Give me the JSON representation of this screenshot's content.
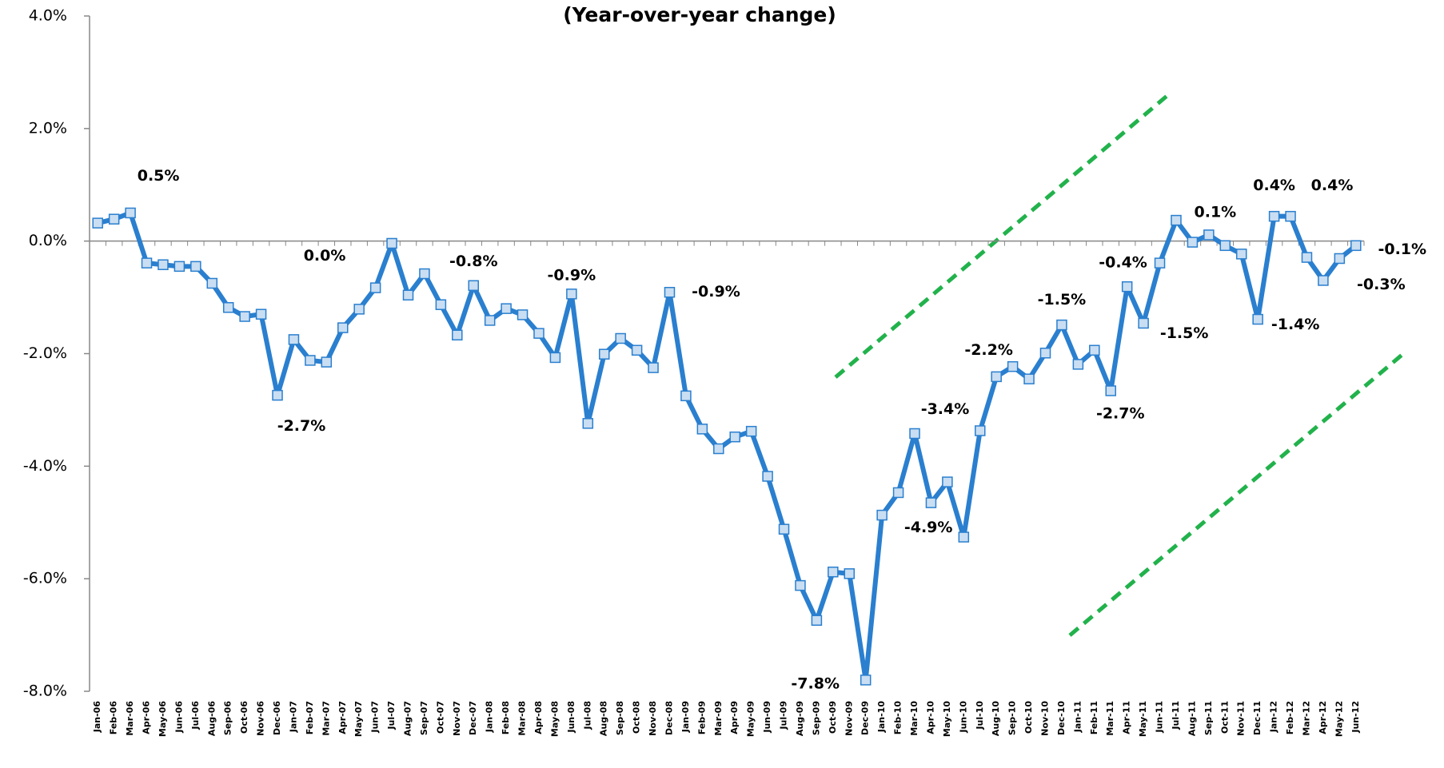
{
  "chart_data": {
    "type": "line",
    "title": "(Year-over-year change)",
    "categories": [
      "Jan-06",
      "Feb-06",
      "Mar-06",
      "Apr-06",
      "May-06",
      "Jun-06",
      "Jul-06",
      "Aug-06",
      "Sep-06",
      "Oct-06",
      "Nov-06",
      "Dec-06",
      "Jan-07",
      "Feb-07",
      "Mar-07",
      "Apr-07",
      "May-07",
      "Jun-07",
      "Jul-07",
      "Aug-07",
      "Sep-07",
      "Oct-07",
      "Nov-07",
      "Dec-07",
      "Jan-08",
      "Feb-08",
      "Mar-08",
      "Apr-08",
      "May-08",
      "Jun-08",
      "Jul-08",
      "Aug-08",
      "Sep-08",
      "Oct-08",
      "Nov-08",
      "Dec-08",
      "Jan-09",
      "Feb-09",
      "Mar-09",
      "Apr-09",
      "May-09",
      "Jun-09",
      "Jul-09",
      "Aug-09",
      "Sep-09",
      "Oct-09",
      "Nov-09",
      "Dec-09",
      "Jan-10",
      "Feb-10",
      "Mar-10",
      "Apr-10",
      "May-10",
      "Jun-10",
      "Jul-10",
      "Aug-10",
      "Sep-10",
      "Oct-10",
      "Nov-10",
      "Dec-10",
      "Jan-11",
      "Feb-11",
      "Mar-11",
      "Apr-11",
      "May-11",
      "Jun-11",
      "Jul-11",
      "Aug-11",
      "Sep-11",
      "Oct-11",
      "Nov-11",
      "Dec-11",
      "Jan-12",
      "Feb-12",
      "Mar-12",
      "Apr-12",
      "May-12",
      "Jun-12"
    ],
    "values": [
      0.32,
      0.39,
      0.5,
      -0.39,
      -0.42,
      -0.45,
      -0.45,
      -0.75,
      -1.18,
      -1.34,
      -1.3,
      -2.74,
      -1.75,
      -2.12,
      -2.15,
      -1.54,
      -1.21,
      -0.83,
      -0.04,
      -0.96,
      -0.58,
      -1.13,
      -1.67,
      -0.79,
      -1.41,
      -1.2,
      -1.31,
      -1.64,
      -2.07,
      -0.94,
      -3.24,
      -2.01,
      -1.73,
      -1.94,
      -2.25,
      -0.91,
      -2.75,
      -3.34,
      -3.69,
      -3.48,
      -3.38,
      -4.18,
      -5.12,
      -6.12,
      -6.74,
      -5.88,
      -5.91,
      -7.8,
      -4.87,
      -4.47,
      -3.42,
      -4.65,
      -4.28,
      -5.26,
      -3.37,
      -2.41,
      -2.23,
      -2.45,
      -1.99,
      -1.49,
      -2.19,
      -1.94,
      -2.66,
      -0.81,
      -1.46,
      -0.39,
      0.37,
      -0.02,
      0.11,
      -0.08,
      -0.23,
      -1.39,
      0.44,
      0.44,
      -0.29,
      -0.7,
      -0.31,
      -0.08
    ],
    "value_labels": [
      null,
      null,
      "0.5%",
      null,
      null,
      null,
      null,
      null,
      null,
      null,
      null,
      "-2.7%",
      null,
      null,
      null,
      null,
      null,
      null,
      "0.0%",
      null,
      null,
      null,
      null,
      "-0.8%",
      null,
      null,
      null,
      null,
      null,
      "-0.9%",
      null,
      null,
      null,
      null,
      null,
      "-0.9%",
      null,
      null,
      null,
      null,
      null,
      null,
      null,
      null,
      null,
      null,
      null,
      "-7.8%",
      "-4.9%",
      null,
      "-3.4%",
      null,
      null,
      null,
      null,
      null,
      "-2.2%",
      null,
      null,
      "-1.5%",
      null,
      null,
      "-2.7%",
      null,
      "-1.5%",
      "-0.4%",
      null,
      null,
      "0.1%",
      null,
      null,
      "-1.4%",
      "0.4%",
      "0.4%",
      null,
      null,
      "-0.3%",
      "-0.1%"
    ],
    "color": "#2a7fcf",
    "marker_color": "#c9def2",
    "ylim": [
      -8,
      4
    ],
    "yticks": [
      {
        "value": -8,
        "label": "-8.0%"
      },
      {
        "value": -6,
        "label": "-6.0%"
      },
      {
        "value": -4,
        "label": "-4.0%"
      },
      {
        "value": -2,
        "label": "-2.0%"
      },
      {
        "value": 0,
        "label": "0.0%"
      },
      {
        "value": 2,
        "label": "2.0%"
      },
      {
        "value": 4,
        "label": "4.0%"
      }
    ],
    "grid": false
  }
}
